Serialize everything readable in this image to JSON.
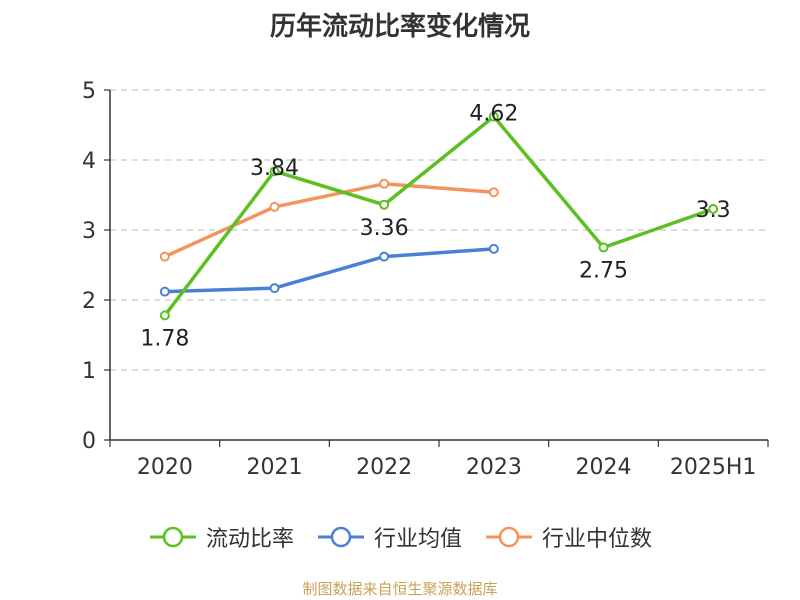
{
  "title": "历年流动比率变化情况",
  "source": "制图数据来自恒生聚源数据库",
  "chart_data": {
    "type": "line",
    "title": "历年流动比率变化情况",
    "categories": [
      "2020",
      "2021",
      "2022",
      "2023",
      "2024",
      "2025H1"
    ],
    "ylim": [
      0,
      5
    ],
    "yticks": [
      0,
      1,
      2,
      3,
      4,
      5
    ],
    "grid": true,
    "grid_style": "dashed-horizontal",
    "legend_position": "bottom",
    "series": [
      {
        "name": "流动比率",
        "color": "#5cc020",
        "values": [
          1.78,
          3.84,
          3.36,
          4.62,
          2.75,
          3.3
        ],
        "labels": [
          "1.78",
          "3.84",
          "3.36",
          "4.62",
          "2.75",
          "3.3"
        ]
      },
      {
        "name": "行业均值",
        "color": "#4b7fd6",
        "values": [
          2.12,
          2.17,
          2.62,
          2.73,
          null,
          null
        ]
      },
      {
        "name": "行业中位数",
        "color": "#f5935c",
        "values": [
          2.62,
          3.33,
          3.66,
          3.54,
          null,
          null
        ]
      }
    ]
  }
}
